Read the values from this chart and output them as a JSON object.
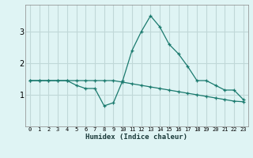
{
  "xlabel": "Humidex (Indice chaleur)",
  "x_ticks": [
    0,
    1,
    2,
    3,
    4,
    5,
    6,
    7,
    8,
    9,
    10,
    11,
    12,
    13,
    14,
    15,
    16,
    17,
    18,
    19,
    20,
    21,
    22,
    23
  ],
  "line1_x": [
    0,
    1,
    2,
    3,
    4,
    5,
    6,
    7,
    8,
    9,
    10,
    11,
    12,
    13,
    14,
    15,
    16,
    17,
    18,
    19,
    20,
    21,
    22,
    23
  ],
  "line1_y": [
    1.45,
    1.45,
    1.45,
    1.45,
    1.45,
    1.3,
    1.2,
    1.2,
    0.65,
    0.75,
    1.45,
    2.4,
    3.0,
    3.5,
    3.15,
    2.6,
    2.3,
    1.9,
    1.45,
    1.45,
    1.3,
    1.15,
    1.15,
    0.85
  ],
  "line2_x": [
    0,
    1,
    2,
    3,
    4,
    5,
    6,
    7,
    8,
    9,
    10,
    11,
    12,
    13,
    14,
    15,
    16,
    17,
    18,
    19,
    20,
    21,
    22,
    23
  ],
  "line2_y": [
    1.45,
    1.45,
    1.45,
    1.45,
    1.45,
    1.45,
    1.45,
    1.45,
    1.45,
    1.45,
    1.4,
    1.35,
    1.3,
    1.25,
    1.2,
    1.15,
    1.1,
    1.05,
    1.0,
    0.95,
    0.9,
    0.85,
    0.8,
    0.78
  ],
  "line_color": "#1a7a6e",
  "bg_color": "#dff4f4",
  "grid_color": "#c0d8d8",
  "ylim": [
    0.0,
    3.85
  ],
  "y_ticks": [
    1,
    2,
    3
  ],
  "xlim": [
    -0.5,
    23.5
  ],
  "tick_fontsize": 5.0,
  "ylabel_fontsize": 7.0,
  "xlabel_fontsize": 6.5
}
